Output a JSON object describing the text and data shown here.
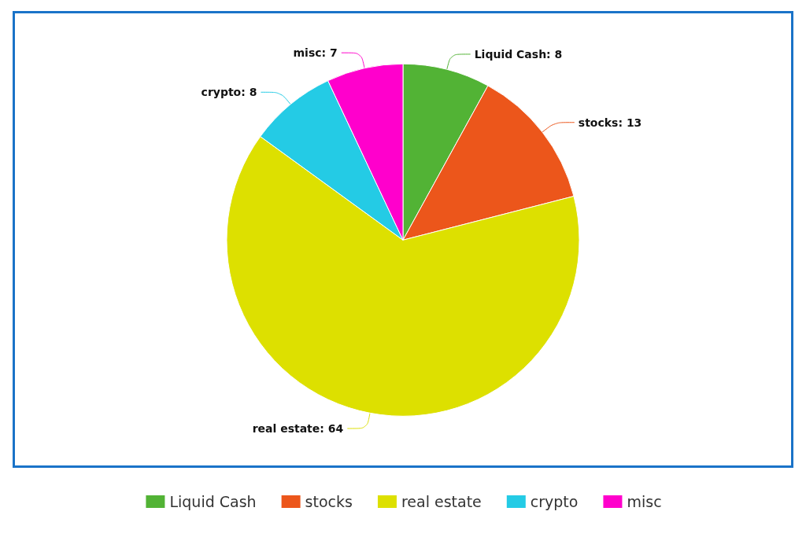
{
  "chart_data": {
    "type": "pie",
    "categories": [
      "Liquid Cash",
      "stocks",
      "real estate",
      "crypto",
      "misc"
    ],
    "values": [
      8,
      13,
      64,
      8,
      7
    ],
    "value_labels": [
      "Liquid Cash: 8",
      "stocks: 13",
      "real estate: 64",
      "crypto: 8",
      "misc: 7"
    ],
    "colors": [
      "#52b335",
      "#ec561b",
      "#dde000",
      "#24cbe5",
      "#ff00cc"
    ],
    "legend": "bottom"
  }
}
